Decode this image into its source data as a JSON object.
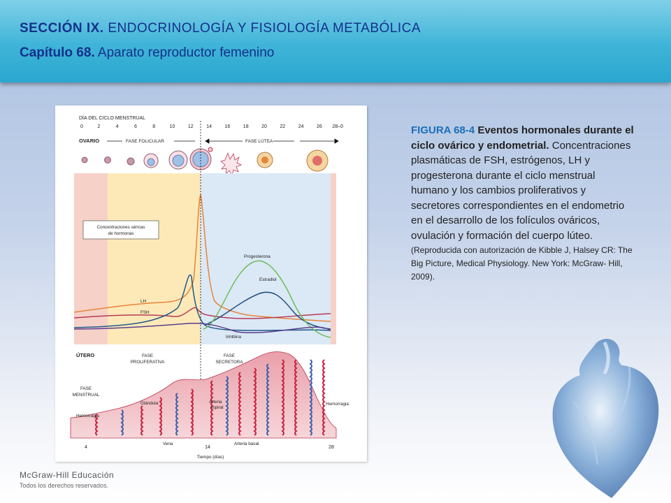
{
  "header": {
    "section_label": "SECCIÓN IX.",
    "section_title": "ENDOCRINOLOGÍA Y FISIOLOGÍA METABÓLICA",
    "chapter_label": "Capítulo 68.",
    "chapter_title": "Aparato reproductor femenino"
  },
  "figure": {
    "cycle_day_label": "DÍA DEL CICLO MENSTRUAL",
    "day_ticks": [
      "0",
      "2",
      "4",
      "6",
      "8",
      "10",
      "12",
      "14",
      "16",
      "18",
      "20",
      "22",
      "24",
      "26",
      "28–0"
    ],
    "ovary_label": "OVARIO",
    "follicular_phase": "FASE FOLICULAR",
    "luteal_phase": "FASE LÚTEA",
    "serum_box_line1": "Concentraciones séricas",
    "serum_box_line2": "de hormonas",
    "hormones": {
      "progesterone": "Progesterona",
      "estradiol": "Estradiol",
      "lh": "LH",
      "fsh": "FSH",
      "inhibin": "Inhibina"
    },
    "uterus_label": "ÚTERO",
    "proliferative_line1": "FASE",
    "proliferative_line2": "PROLIFERATIVA",
    "secretory_line1": "FASE",
    "secretory_line2": "SECRETORA",
    "menstrual_line1": "FASE",
    "menstrual_line2": "MENSTRUAL",
    "gland": "Glándula",
    "spiral_artery_line1": "Arteria",
    "spiral_artery_line2": "espiral",
    "hemorrhage_left": "Hemorragia",
    "hemorrhage_right": "Hemorragia",
    "vein": "Vena",
    "basal_artery": "Arteria basal",
    "bottom_ticks": [
      "4",
      "14",
      "28"
    ],
    "time_label": "Tiempo (días)"
  },
  "caption": {
    "id": "FIGURA 68-4",
    "title": "Eventos hormonales durante el ciclo ovárico y endometrial.",
    "body": "Concentraciones plasmáticas de FSH, estrógenos, LH y progesterona durante el ciclo menstrual humano y los cambios proliferativos y secretores correspondientes en el endometrio en el desarrollo de los folículos ováricos, ovulación y formación del cuerpo lúteo.",
    "reference": "(Reproducida con autorización de Kibble J, Halsey CR: The Big Picture, Medical Physiology. New York: McGraw- Hill, 2009)."
  },
  "footer": {
    "brand": "McGraw-Hill Educación",
    "rights": "Todos los derechos reservados."
  },
  "colors": {
    "header_blue": "#2aa7d0",
    "title_navy": "#13318a",
    "caption_blue": "#1a6fb8",
    "lh_orange": "#e8843a",
    "fsh_blue": "#1f5a8a",
    "progesterone_green": "#6dbf5a",
    "estradiol_navy": "#23507f",
    "inhibin_purple": "#5a3f8c",
    "fsh_red": "#b73a56"
  }
}
